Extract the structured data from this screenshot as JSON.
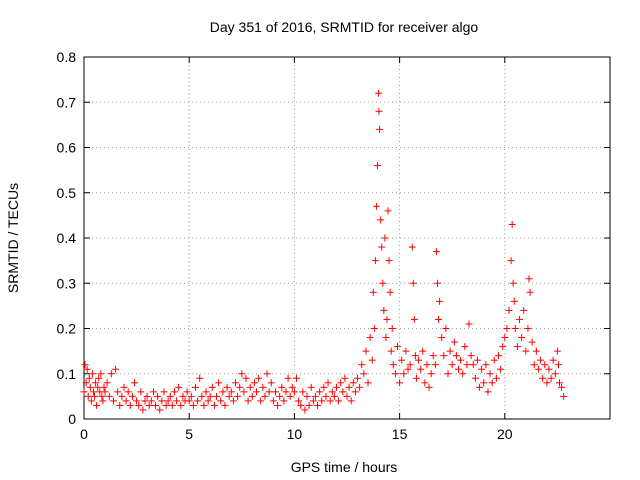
{
  "chart_data": {
    "type": "scatter",
    "title": "Day 351 of 2016, SRMTID for receiver algo",
    "xlabel": "GPS time / hours",
    "ylabel": "SRMTID / TECUs",
    "xlim": [
      0,
      25
    ],
    "ylim": [
      0,
      0.8
    ],
    "xticks": [
      0,
      5,
      10,
      15,
      20
    ],
    "yticks": [
      0,
      0.1,
      0.2,
      0.3,
      0.4,
      0.5,
      0.6,
      0.7,
      0.8
    ],
    "xtick_labels": [
      "0",
      "5",
      "10",
      "15",
      "20"
    ],
    "ytick_labels": [
      "0",
      "0.1",
      "0.2",
      "0.3",
      "0.4",
      "0.5",
      "0.6",
      "0.7",
      "0.8"
    ],
    "grid": true,
    "marker": "+",
    "color": "#ff0000",
    "series": [
      {
        "name": "SRMTID",
        "points": [
          [
            0.0,
            0.06
          ],
          [
            0.05,
            0.12
          ],
          [
            0.1,
            0.08
          ],
          [
            0.15,
            0.11
          ],
          [
            0.2,
            0.05
          ],
          [
            0.25,
            0.09
          ],
          [
            0.3,
            0.07
          ],
          [
            0.35,
            0.04
          ],
          [
            0.4,
            0.1
          ],
          [
            0.45,
            0.06
          ],
          [
            0.5,
            0.05
          ],
          [
            0.55,
            0.08
          ],
          [
            0.6,
            0.03
          ],
          [
            0.65,
            0.07
          ],
          [
            0.7,
            0.09
          ],
          [
            0.75,
            0.06
          ],
          [
            0.8,
            0.1
          ],
          [
            0.85,
            0.05
          ],
          [
            0.9,
            0.04
          ],
          [
            0.95,
            0.07
          ],
          [
            1.0,
            0.06
          ],
          [
            1.1,
            0.08
          ],
          [
            1.2,
            0.05
          ],
          [
            1.3,
            0.1
          ],
          [
            1.4,
            0.04
          ],
          [
            1.5,
            0.11
          ],
          [
            1.6,
            0.06
          ],
          [
            1.7,
            0.03
          ],
          [
            1.8,
            0.05
          ],
          [
            1.9,
            0.07
          ],
          [
            2.0,
            0.04
          ],
          [
            2.1,
            0.06
          ],
          [
            2.2,
            0.03
          ],
          [
            2.3,
            0.05
          ],
          [
            2.4,
            0.08
          ],
          [
            2.5,
            0.04
          ],
          [
            2.6,
            0.03
          ],
          [
            2.7,
            0.06
          ],
          [
            2.8,
            0.02
          ],
          [
            2.9,
            0.04
          ],
          [
            3.0,
            0.05
          ],
          [
            3.1,
            0.03
          ],
          [
            3.2,
            0.04
          ],
          [
            3.3,
            0.06
          ],
          [
            3.4,
            0.03
          ],
          [
            3.5,
            0.05
          ],
          [
            3.6,
            0.02
          ],
          [
            3.7,
            0.04
          ],
          [
            3.8,
            0.06
          ],
          [
            3.9,
            0.03
          ],
          [
            4.0,
            0.04
          ],
          [
            4.1,
            0.05
          ],
          [
            4.2,
            0.03
          ],
          [
            4.3,
            0.06
          ],
          [
            4.4,
            0.04
          ],
          [
            4.5,
            0.07
          ],
          [
            4.6,
            0.03
          ],
          [
            4.7,
            0.05
          ],
          [
            4.8,
            0.04
          ],
          [
            4.9,
            0.06
          ],
          [
            5.0,
            0.04
          ],
          [
            5.1,
            0.05
          ],
          [
            5.2,
            0.03
          ],
          [
            5.3,
            0.07
          ],
          [
            5.4,
            0.04
          ],
          [
            5.5,
            0.09
          ],
          [
            5.6,
            0.05
          ],
          [
            5.7,
            0.03
          ],
          [
            5.8,
            0.06
          ],
          [
            5.9,
            0.04
          ],
          [
            6.0,
            0.05
          ],
          [
            6.1,
            0.07
          ],
          [
            6.2,
            0.03
          ],
          [
            6.3,
            0.05
          ],
          [
            6.4,
            0.08
          ],
          [
            6.5,
            0.04
          ],
          [
            6.6,
            0.06
          ],
          [
            6.7,
            0.03
          ],
          [
            6.8,
            0.07
          ],
          [
            6.9,
            0.05
          ],
          [
            7.0,
            0.06
          ],
          [
            7.1,
            0.04
          ],
          [
            7.2,
            0.08
          ],
          [
            7.3,
            0.05
          ],
          [
            7.4,
            0.07
          ],
          [
            7.5,
            0.1
          ],
          [
            7.6,
            0.06
          ],
          [
            7.7,
            0.09
          ],
          [
            7.8,
            0.04
          ],
          [
            7.9,
            0.07
          ],
          [
            8.0,
            0.05
          ],
          [
            8.1,
            0.08
          ],
          [
            8.2,
            0.06
          ],
          [
            8.3,
            0.09
          ],
          [
            8.4,
            0.04
          ],
          [
            8.5,
            0.07
          ],
          [
            8.6,
            0.05
          ],
          [
            8.7,
            0.1
          ],
          [
            8.8,
            0.06
          ],
          [
            8.9,
            0.08
          ],
          [
            9.0,
            0.04
          ],
          [
            9.1,
            0.06
          ],
          [
            9.2,
            0.03
          ],
          [
            9.3,
            0.05
          ],
          [
            9.4,
            0.07
          ],
          [
            9.5,
            0.04
          ],
          [
            9.6,
            0.06
          ],
          [
            9.7,
            0.09
          ],
          [
            9.8,
            0.05
          ],
          [
            9.9,
            0.07
          ],
          [
            10.0,
            0.06
          ],
          [
            10.1,
            0.09
          ],
          [
            10.2,
            0.04
          ],
          [
            10.3,
            0.03
          ],
          [
            10.4,
            0.06
          ],
          [
            10.5,
            0.02
          ],
          [
            10.6,
            0.05
          ],
          [
            10.7,
            0.03
          ],
          [
            10.8,
            0.07
          ],
          [
            10.9,
            0.04
          ],
          [
            11.0,
            0.05
          ],
          [
            11.1,
            0.03
          ],
          [
            11.2,
            0.06
          ],
          [
            11.3,
            0.04
          ],
          [
            11.4,
            0.07
          ],
          [
            11.5,
            0.05
          ],
          [
            11.6,
            0.08
          ],
          [
            11.7,
            0.04
          ],
          [
            11.8,
            0.06
          ],
          [
            11.9,
            0.05
          ],
          [
            12.0,
            0.07
          ],
          [
            12.1,
            0.04
          ],
          [
            12.2,
            0.08
          ],
          [
            12.3,
            0.06
          ],
          [
            12.4,
            0.09
          ],
          [
            12.5,
            0.05
          ],
          [
            12.6,
            0.07
          ],
          [
            12.7,
            0.04
          ],
          [
            12.8,
            0.08
          ],
          [
            12.9,
            0.06
          ],
          [
            13.0,
            0.09
          ],
          [
            13.1,
            0.07
          ],
          [
            13.2,
            0.12
          ],
          [
            13.3,
            0.1
          ],
          [
            13.4,
            0.15
          ],
          [
            13.5,
            0.08
          ],
          [
            13.6,
            0.18
          ],
          [
            13.7,
            0.13
          ],
          [
            13.75,
            0.28
          ],
          [
            13.8,
            0.2
          ],
          [
            13.85,
            0.35
          ],
          [
            13.9,
            0.47
          ],
          [
            13.95,
            0.56
          ],
          [
            14.0,
            0.72
          ],
          [
            14.02,
            0.68
          ],
          [
            14.05,
            0.64
          ],
          [
            14.1,
            0.44
          ],
          [
            14.15,
            0.38
          ],
          [
            14.2,
            0.3
          ],
          [
            14.25,
            0.24
          ],
          [
            14.3,
            0.4
          ],
          [
            14.35,
            0.18
          ],
          [
            14.4,
            0.22
          ],
          [
            14.45,
            0.46
          ],
          [
            14.5,
            0.35
          ],
          [
            14.55,
            0.28
          ],
          [
            14.6,
            0.15
          ],
          [
            14.65,
            0.2
          ],
          [
            14.7,
            0.12
          ],
          [
            14.8,
            0.1
          ],
          [
            14.9,
            0.16
          ],
          [
            15.0,
            0.08
          ],
          [
            15.1,
            0.13
          ],
          [
            15.2,
            0.1
          ],
          [
            15.3,
            0.15
          ],
          [
            15.4,
            0.11
          ],
          [
            15.5,
            0.12
          ],
          [
            15.6,
            0.38
          ],
          [
            15.65,
            0.3
          ],
          [
            15.7,
            0.22
          ],
          [
            15.75,
            0.14
          ],
          [
            15.8,
            0.09
          ],
          [
            15.9,
            0.13
          ],
          [
            16.0,
            0.11
          ],
          [
            16.1,
            0.15
          ],
          [
            16.2,
            0.08
          ],
          [
            16.3,
            0.12
          ],
          [
            16.4,
            0.07
          ],
          [
            16.5,
            0.1
          ],
          [
            16.6,
            0.14
          ],
          [
            16.7,
            0.12
          ],
          [
            16.75,
            0.37
          ],
          [
            16.8,
            0.3
          ],
          [
            16.85,
            0.22
          ],
          [
            16.9,
            0.26
          ],
          [
            17.0,
            0.18
          ],
          [
            17.1,
            0.14
          ],
          [
            17.2,
            0.2
          ],
          [
            17.3,
            0.1
          ],
          [
            17.4,
            0.15
          ],
          [
            17.5,
            0.12
          ],
          [
            17.6,
            0.17
          ],
          [
            17.7,
            0.14
          ],
          [
            17.8,
            0.11
          ],
          [
            17.9,
            0.13
          ],
          [
            18.0,
            0.1
          ],
          [
            18.1,
            0.16
          ],
          [
            18.2,
            0.12
          ],
          [
            18.3,
            0.21
          ],
          [
            18.4,
            0.14
          ],
          [
            18.5,
            0.12
          ],
          [
            18.6,
            0.09
          ],
          [
            18.7,
            0.13
          ],
          [
            18.8,
            0.07
          ],
          [
            18.9,
            0.11
          ],
          [
            19.0,
            0.08
          ],
          [
            19.1,
            0.12
          ],
          [
            19.2,
            0.06
          ],
          [
            19.3,
            0.1
          ],
          [
            19.4,
            0.08
          ],
          [
            19.5,
            0.13
          ],
          [
            19.6,
            0.09
          ],
          [
            19.7,
            0.14
          ],
          [
            19.8,
            0.11
          ],
          [
            19.9,
            0.16
          ],
          [
            20.0,
            0.18
          ],
          [
            20.1,
            0.2
          ],
          [
            20.2,
            0.24
          ],
          [
            20.3,
            0.35
          ],
          [
            20.35,
            0.43
          ],
          [
            20.4,
            0.3
          ],
          [
            20.45,
            0.26
          ],
          [
            20.5,
            0.2
          ],
          [
            20.6,
            0.16
          ],
          [
            20.7,
            0.22
          ],
          [
            20.8,
            0.18
          ],
          [
            20.9,
            0.24
          ],
          [
            21.0,
            0.15
          ],
          [
            21.1,
            0.2
          ],
          [
            21.15,
            0.31
          ],
          [
            21.2,
            0.28
          ],
          [
            21.3,
            0.17
          ],
          [
            21.4,
            0.12
          ],
          [
            21.5,
            0.15
          ],
          [
            21.6,
            0.11
          ],
          [
            21.7,
            0.13
          ],
          [
            21.8,
            0.09
          ],
          [
            21.9,
            0.12
          ],
          [
            22.0,
            0.08
          ],
          [
            22.1,
            0.11
          ],
          [
            22.2,
            0.09
          ],
          [
            22.3,
            0.13
          ],
          [
            22.4,
            0.1
          ],
          [
            22.5,
            0.15
          ],
          [
            22.55,
            0.12
          ],
          [
            22.6,
            0.08
          ],
          [
            22.7,
            0.07
          ],
          [
            22.8,
            0.05
          ]
        ]
      }
    ]
  }
}
